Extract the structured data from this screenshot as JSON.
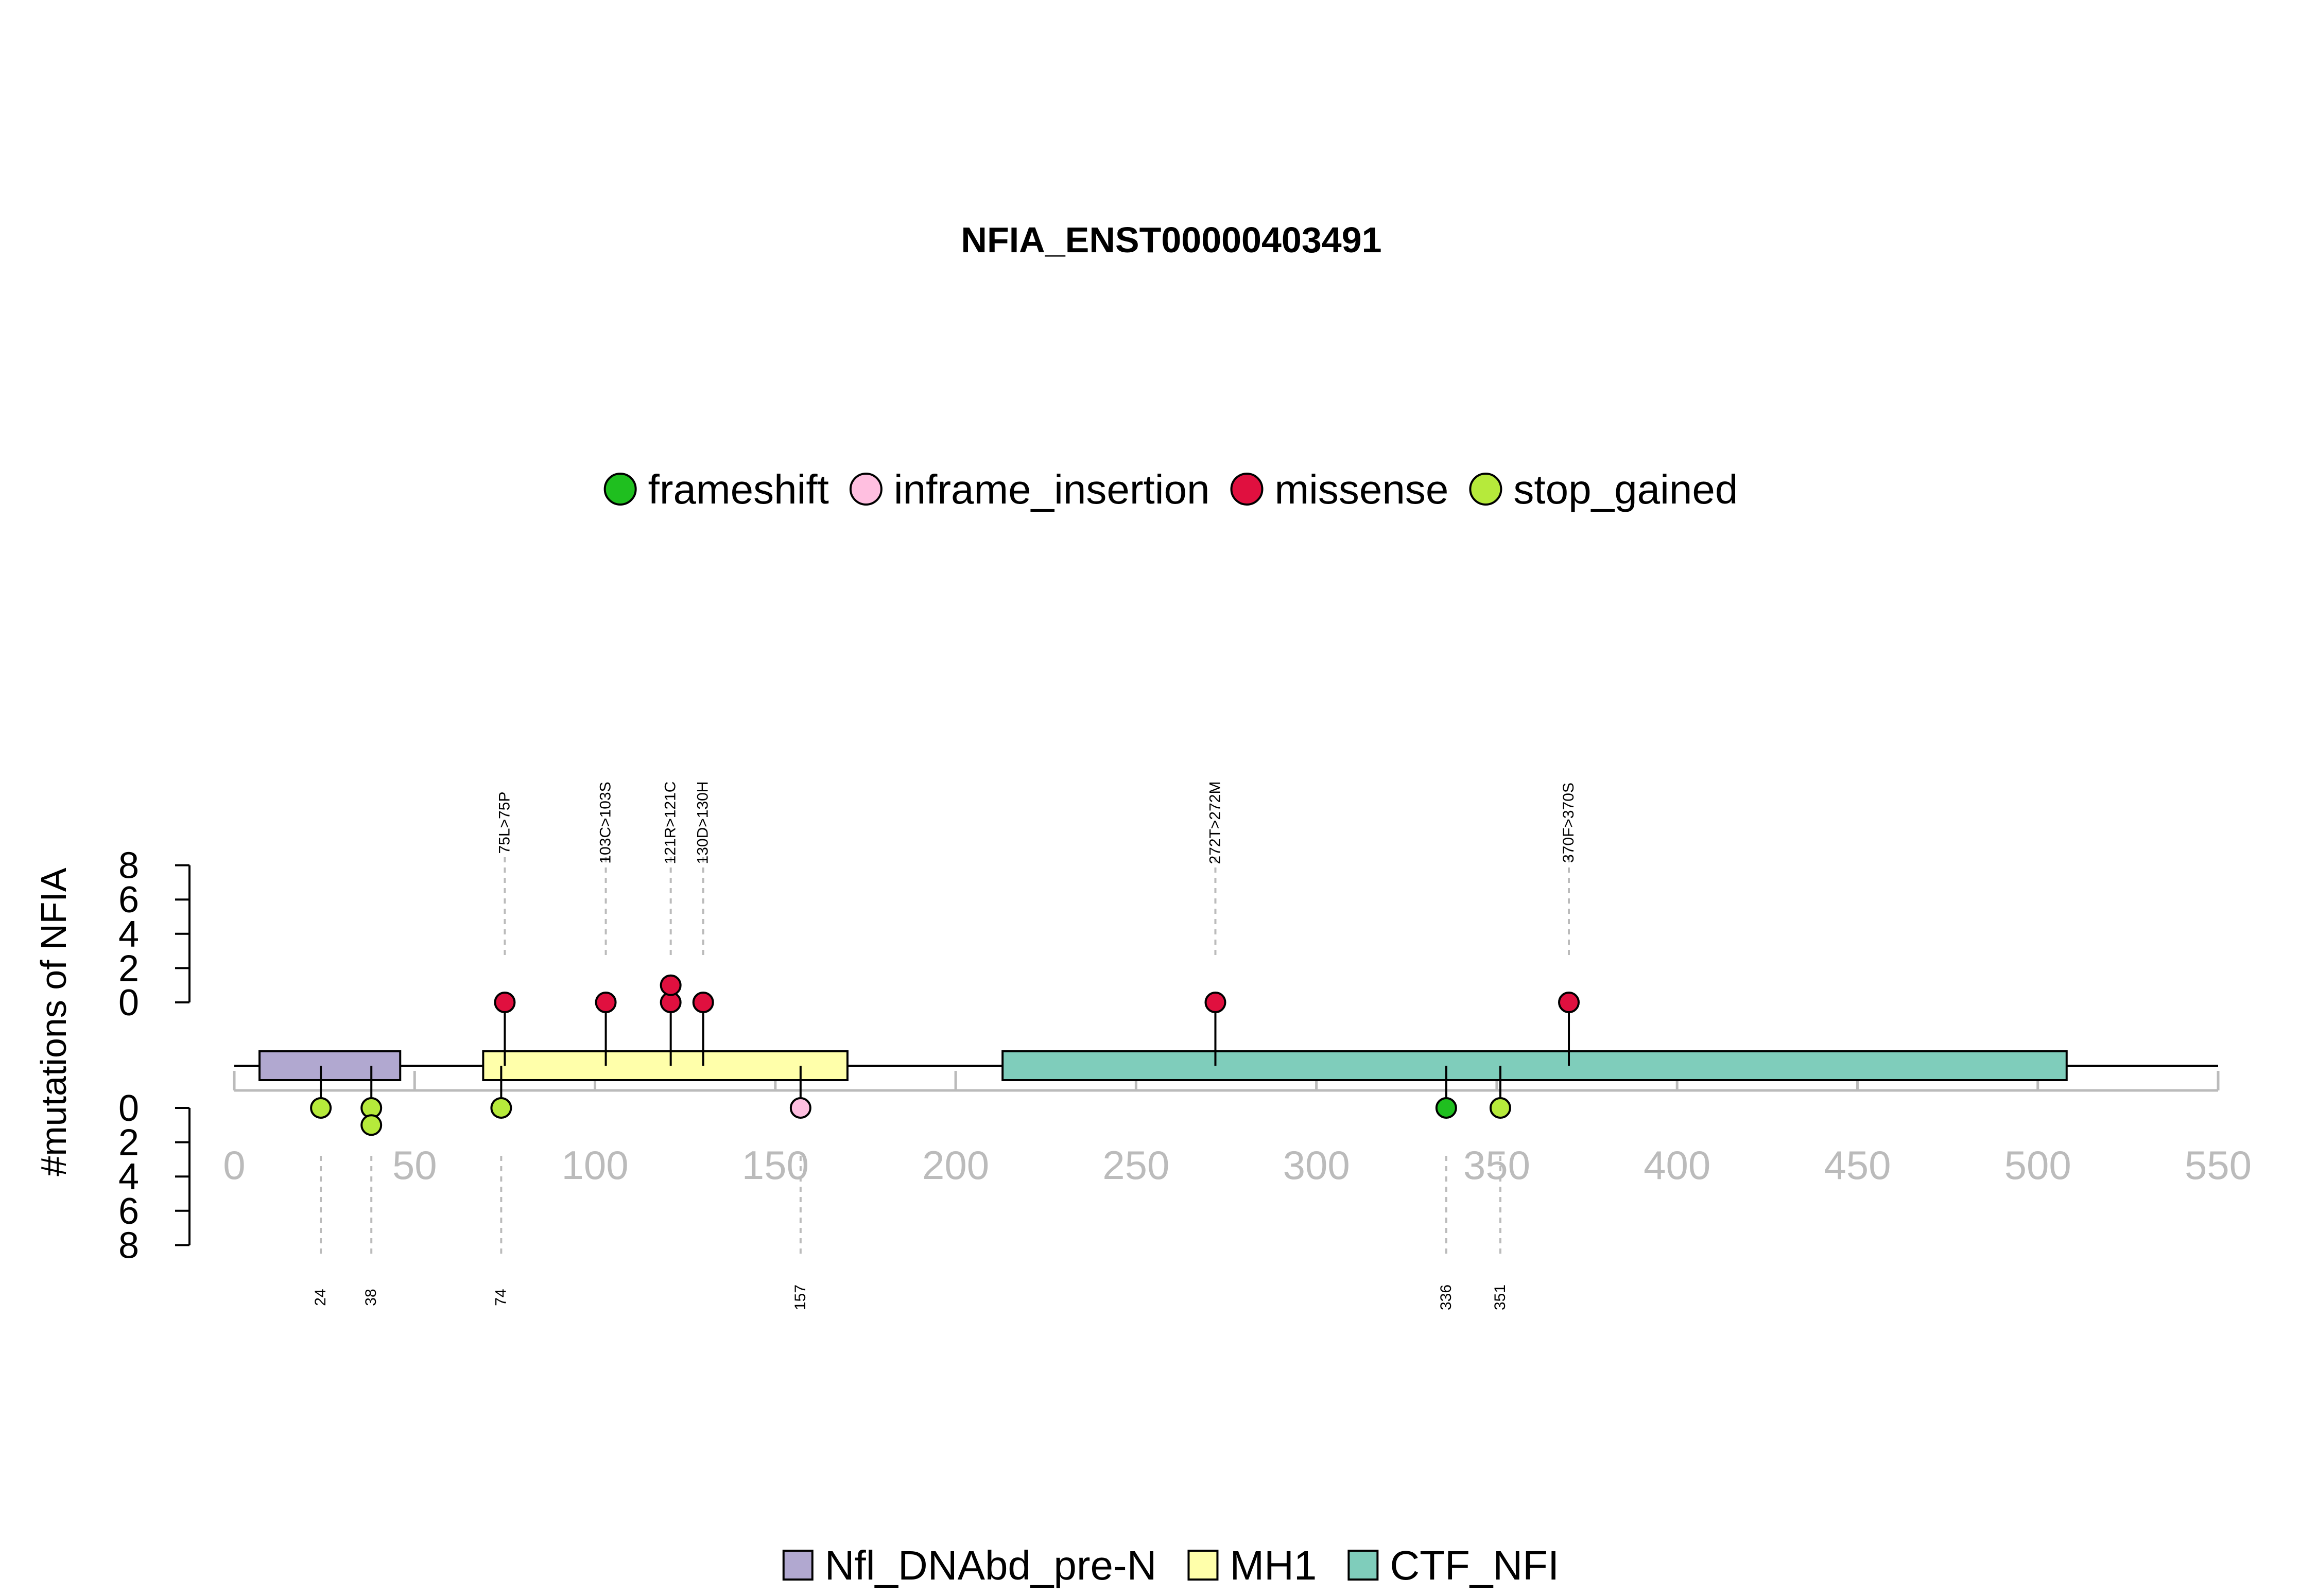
{
  "chart_data": {
    "type": "lollipop",
    "title": "NFIA_ENST00000403491",
    "ylabel": "#mutations of NFIA",
    "xlim": [
      0,
      550
    ],
    "x_ticks": [
      0,
      50,
      100,
      150,
      200,
      250,
      300,
      350,
      400,
      450,
      500,
      550
    ],
    "y_ticks": [
      0,
      2,
      4,
      6,
      8
    ],
    "mutation_types": [
      {
        "name": "frameshift",
        "color": "#1fbf1f"
      },
      {
        "name": "inframe_insertion",
        "color": "#ffbfe0"
      },
      {
        "name": "missense",
        "color": "#e0103f"
      },
      {
        "name": "stop_gained",
        "color": "#b6ea3b"
      }
    ],
    "domains": [
      {
        "name": "Nfl_DNAbd_pre-N",
        "start": 7,
        "end": 46,
        "color": "#b1a8d0"
      },
      {
        "name": "MH1",
        "start": 69,
        "end": 170,
        "color": "#ffffaa"
      },
      {
        "name": "CTF_NFI",
        "start": 213,
        "end": 508,
        "color": "#7fcdbb"
      }
    ],
    "top_mutations": [
      {
        "position": 75,
        "label": "75L>75P",
        "count": 1,
        "type": "missense"
      },
      {
        "position": 103,
        "label": "103C>103S",
        "count": 1,
        "type": "missense"
      },
      {
        "position": 121,
        "label": "121R>121C",
        "count": 2,
        "type": "missense"
      },
      {
        "position": 130,
        "label": "130D>130H",
        "count": 1,
        "type": "missense"
      },
      {
        "position": 272,
        "label": "272T>272M",
        "count": 1,
        "type": "missense"
      },
      {
        "position": 370,
        "label": "370F>370S",
        "count": 1,
        "type": "missense"
      }
    ],
    "bottom_mutations": [
      {
        "position": 24,
        "label": "24",
        "count": 1,
        "type": "stop_gained"
      },
      {
        "position": 38,
        "label": "38",
        "count": 2,
        "type": "stop_gained"
      },
      {
        "position": 74,
        "label": "74",
        "count": 1,
        "type": "stop_gained"
      },
      {
        "position": 157,
        "label": "157",
        "count": 1,
        "type": "inframe_insertion"
      },
      {
        "position": 336,
        "label": "336",
        "count": 1,
        "type": "frameshift"
      },
      {
        "position": 351,
        "label": "351",
        "count": 1,
        "type": "stop_gained"
      }
    ],
    "colors": {
      "tick_gray": "#bbbbbb",
      "guide_gray": "#bbbbbb"
    }
  }
}
